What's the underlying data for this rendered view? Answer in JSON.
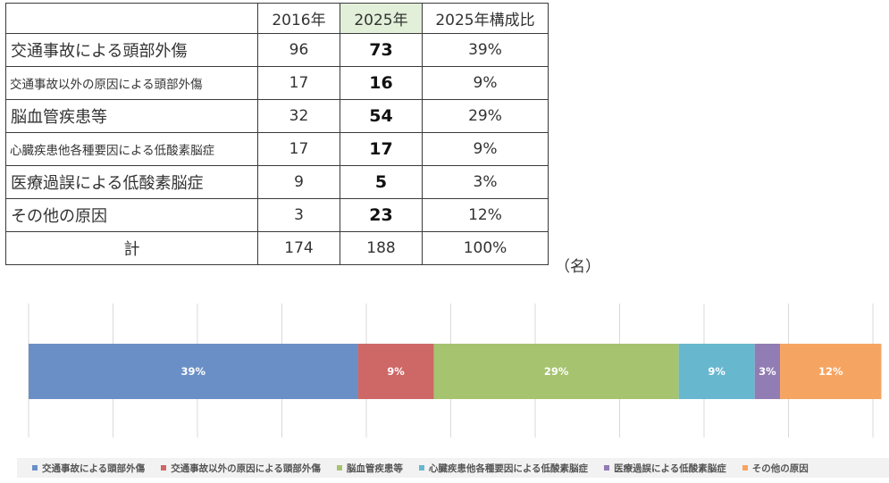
{
  "table": {
    "headers": [
      "",
      "2016年",
      "2025年",
      "2025年構成比"
    ],
    "rows": [
      {
        "cause": "交通事故による頭部外傷",
        "y2016": "96",
        "y2025": "73",
        "ratio": "39%"
      },
      {
        "cause": "交通事故以外の原因による頭部外傷",
        "y2016": "17",
        "y2025": "16",
        "ratio": "9%"
      },
      {
        "cause": "脳血管疾患等",
        "y2016": "32",
        "y2025": "54",
        "ratio": "29%"
      },
      {
        "cause": "心臓疾患他各種要因による低酸素脳症",
        "y2016": "17",
        "y2025": "17",
        "ratio": "9%"
      },
      {
        "cause": "医療過誤による低酸素脳症",
        "y2016": "9",
        "y2025": "5",
        "ratio": "3%"
      },
      {
        "cause": "その他の原因",
        "y2016": "3",
        "y2025": "23",
        "ratio": "12%"
      }
    ],
    "total": {
      "cause": "計",
      "y2016": "174",
      "y2025": "188",
      "ratio": "100%"
    },
    "unit": "（名）"
  },
  "chart_data": {
    "type": "bar",
    "orientation": "horizontal",
    "stacked": "100%",
    "categories": [
      ""
    ],
    "series": [
      {
        "name": "交通事故による頭部外傷",
        "values": [
          39
        ],
        "label": "39%",
        "color": "#6a8fc6"
      },
      {
        "name": "交通事故以外の原因による頭部外傷",
        "values": [
          9
        ],
        "label": "9%",
        "color": "#cd6866"
      },
      {
        "name": "脳血管疾患等",
        "values": [
          29
        ],
        "label": "29%",
        "color": "#a6c36f"
      },
      {
        "name": "心臓疾患他各種要因による低酸素脳症",
        "values": [
          9
        ],
        "label": "9%",
        "color": "#67b7cf"
      },
      {
        "name": "医療過誤による低酸素脳症",
        "values": [
          3
        ],
        "label": "3%",
        "color": "#917cb4"
      },
      {
        "name": "その他の原因",
        "values": [
          12
        ],
        "label": "12%",
        "color": "#f6a462"
      }
    ],
    "xlim": [
      0,
      100
    ],
    "grid": true,
    "legend": "bottom"
  }
}
